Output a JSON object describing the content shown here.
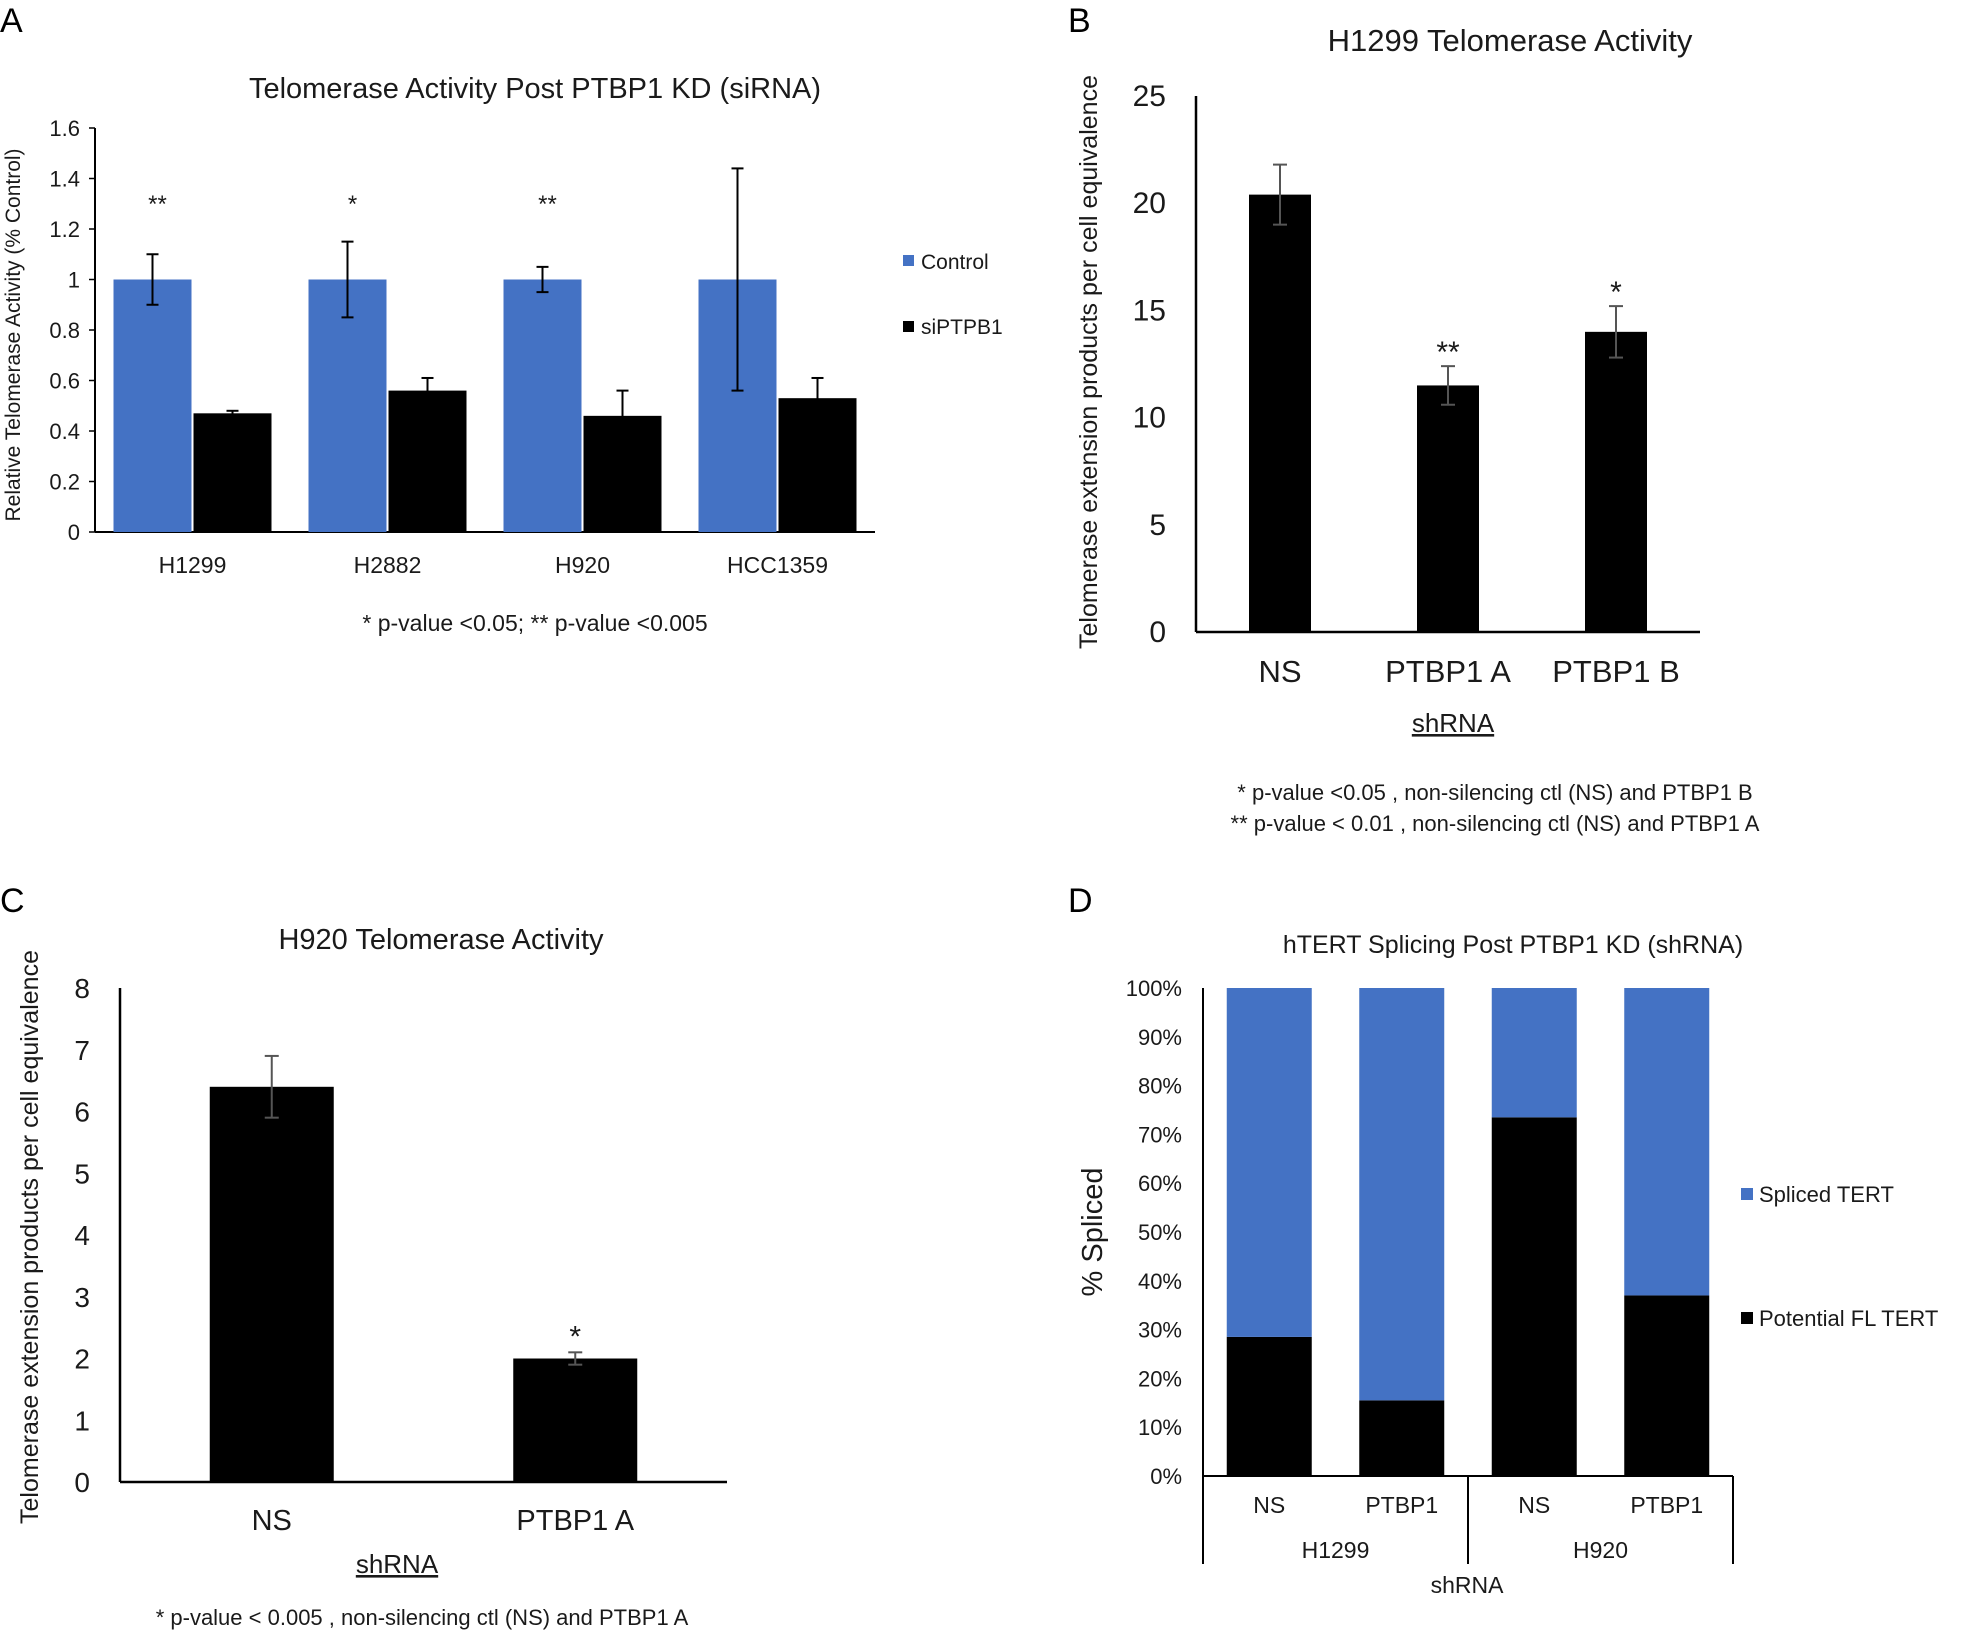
{
  "colors": {
    "blue": "#4472C4",
    "black": "#000000",
    "axis": "#000000",
    "text": "#1a1a1a"
  },
  "chart_data": [
    {
      "panel": "A",
      "type": "bar",
      "title": "Telomerase Activity Post PTBP1 KD (siRNA)",
      "ylabel": "Relative Telomerase Activity (% Control)",
      "xlabel": "",
      "ylim": [
        0,
        1.6
      ],
      "yticks": [
        "0",
        "0.2",
        "0.4",
        "0.6",
        "0.8",
        "1",
        "1.2",
        "1.4",
        "1.6"
      ],
      "categories": [
        "H1299",
        "H2882",
        "H920",
        "HCC1359"
      ],
      "series": [
        {
          "name": "Control",
          "values": [
            1,
            1,
            1,
            1
          ],
          "errors": [
            0.1,
            0.15,
            0.05,
            0.44
          ]
        },
        {
          "name": "siPTPB1",
          "values": [
            0.47,
            0.56,
            0.46,
            0.53
          ],
          "errors": [
            0.01,
            0.05,
            0.1,
            0.08
          ]
        }
      ],
      "significance": [
        "**",
        "*",
        "**",
        ""
      ],
      "legend": "right",
      "footnote": "* p-value <0.05; ** p-value <0.005"
    },
    {
      "panel": "B",
      "type": "bar",
      "title": "H1299 Telomerase Activity",
      "ylabel": "Telomerase extension products per cell equivalence",
      "xlabel": "shRNA",
      "ylim": [
        0,
        25
      ],
      "yticks": [
        "0",
        "5",
        "10",
        "15",
        "20",
        "25"
      ],
      "categories": [
        "NS",
        "PTBP1 A",
        "PTBP1 B"
      ],
      "values": [
        20.4,
        11.5,
        14.0
      ],
      "errors": [
        1.4,
        0.9,
        1.2
      ],
      "significance": [
        "",
        "**",
        "*"
      ],
      "footnotes": [
        "* p-value <0.05 ,  non-silencing ctl (NS) and PTBP1 B",
        "** p-value < 0.01 , non-silencing ctl  (NS) and PTBP1 A"
      ]
    },
    {
      "panel": "C",
      "type": "bar",
      "title": "H920 Telomerase Activity",
      "ylabel": "Telomerase extension products per cell equivalence",
      "xlabel": "shRNA",
      "ylim": [
        0,
        8
      ],
      "yticks": [
        "0",
        "1",
        "2",
        "3",
        "4",
        "5",
        "6",
        "7",
        "8"
      ],
      "categories": [
        "NS",
        "PTBP1 A"
      ],
      "values": [
        6.4,
        2.0
      ],
      "errors": [
        0.5,
        0.1
      ],
      "significance": [
        "",
        "*"
      ],
      "footnote": "* p-value < 0.005 , non-silencing ctl (NS) and PTBP1 A"
    },
    {
      "panel": "D",
      "type": "bar",
      "stacked": true,
      "title": "hTERT Splicing Post PTBP1 KD (shRNA)",
      "ylabel": "% Spliced",
      "xlabel": "shRNA",
      "ylim": [
        0,
        100
      ],
      "yticks": [
        "0%",
        "10%",
        "20%",
        "30%",
        "40%",
        "50%",
        "60%",
        "70%",
        "80%",
        "90%",
        "100%"
      ],
      "categories": [
        "NS",
        "PTBP1",
        "NS",
        "PTBP1"
      ],
      "groups": [
        "H1299",
        "H920"
      ],
      "series": [
        {
          "name": "Spliced TERT",
          "values": [
            71.5,
            84.5,
            26.5,
            63
          ]
        },
        {
          "name": "Potential FL TERT",
          "values": [
            28.5,
            15.5,
            73.5,
            37
          ]
        }
      ],
      "legend": "right"
    }
  ]
}
